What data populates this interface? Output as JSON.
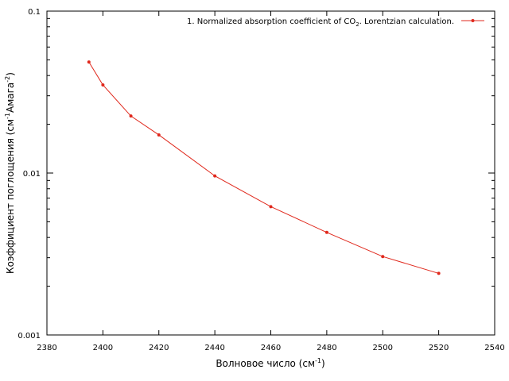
{
  "chart_data": {
    "type": "line",
    "title": "",
    "xlabel": "Волновое число (см",
    "xlabel_sup": "-1",
    "xlabel_end": ")",
    "ylabel": "Коэффициент поглощения (см",
    "ylabel_sup1": "-1",
    "ylabel_mid": "Амага",
    "ylabel_sup2": "-2",
    "ylabel_end": ")",
    "xlim": [
      2380,
      2540
    ],
    "ylim": [
      0.001,
      0.1
    ],
    "yscale": "log",
    "grid": false,
    "legend_position": "top-right",
    "x_ticks": [
      2380,
      2400,
      2420,
      2440,
      2460,
      2480,
      2500,
      2520,
      2540
    ],
    "x_tick_labels": [
      "2380",
      "2400",
      "2420",
      "2440",
      "2460",
      "2480",
      "2500",
      "2520",
      "2540"
    ],
    "y_ticks": [
      0.001,
      0.01,
      0.1
    ],
    "y_tick_labels": [
      "0.001",
      "0.01",
      "0.1"
    ],
    "series": [
      {
        "name": "1. Normalized absorption coefficient of CO",
        "name_sub": "2",
        "name_end": ". Lorentzian calculation.",
        "color": "#e0281c",
        "x": [
          2395,
          2400,
          2410,
          2420,
          2440,
          2460,
          2480,
          2500,
          2520
        ],
        "y": [
          0.0485,
          0.035,
          0.0225,
          0.0172,
          0.0096,
          0.0062,
          0.0043,
          0.00305,
          0.0024
        ]
      }
    ]
  }
}
